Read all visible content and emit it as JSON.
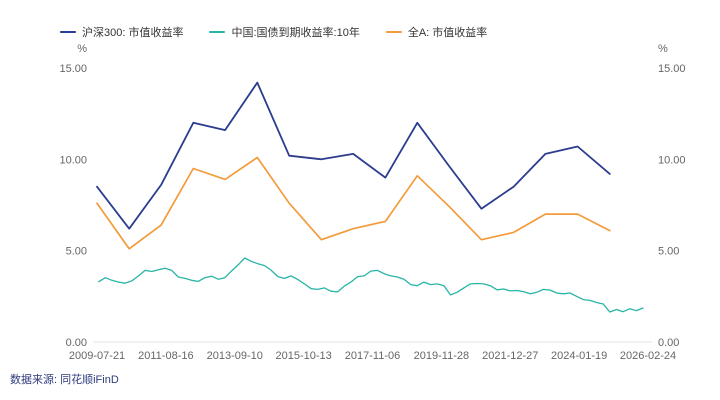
{
  "chart_data": {
    "type": "line",
    "title": "",
    "grid": false,
    "legend_position": "top-left",
    "y_axis": {
      "label": "%",
      "min": 0,
      "max": 15,
      "tick_values": [
        0,
        5,
        10,
        15
      ],
      "tick_labels": [
        "0.00",
        "5.00",
        "10.00",
        "15.00"
      ],
      "shown_on_both_sides": true
    },
    "x_axis": {
      "domain_years": [
        2009.55,
        2026.15
      ],
      "tick_labels": [
        "2009-07-21",
        "2011-08-16",
        "2013-09-10",
        "2015-10-13",
        "2017-11-06",
        "2019-11-28",
        "2021-12-27",
        "2024-01-19",
        "2026-02-24"
      ]
    },
    "series": [
      {
        "id": "hs300-yield",
        "name": "沪深300: 市值收益率",
        "color": "#2c3c8e",
        "x": [
          2009.55,
          2010.52,
          2011.48,
          2012.45,
          2013.41,
          2014.38,
          2015.34,
          2016.31,
          2017.27,
          2018.24,
          2019.2,
          2020.17,
          2021.13,
          2022.1,
          2023.06,
          2024.03,
          2025.0
        ],
        "values": [
          8.5,
          6.2,
          8.6,
          12.0,
          11.6,
          14.2,
          10.2,
          10.0,
          10.3,
          9.0,
          12.0,
          9.6,
          7.3,
          8.5,
          10.3,
          10.7,
          9.2
        ]
      },
      {
        "id": "cn10y-bond-yield",
        "name": "中国:国债到期收益率:10年",
        "color": "#27b5a6",
        "x_start": 2009.6,
        "x_step": 0.2,
        "values": [
          3.3,
          3.52,
          3.38,
          3.28,
          3.22,
          3.35,
          3.62,
          3.92,
          3.86,
          3.95,
          4.04,
          3.92,
          3.56,
          3.48,
          3.38,
          3.32,
          3.52,
          3.6,
          3.44,
          3.52,
          3.88,
          4.22,
          4.6,
          4.42,
          4.28,
          4.18,
          3.92,
          3.58,
          3.48,
          3.62,
          3.42,
          3.18,
          2.92,
          2.88,
          2.96,
          2.78,
          2.74,
          3.06,
          3.28,
          3.58,
          3.62,
          3.88,
          3.92,
          3.74,
          3.62,
          3.56,
          3.44,
          3.14,
          3.08,
          3.28,
          3.14,
          3.18,
          3.08,
          2.58,
          2.72,
          2.96,
          3.18,
          3.2,
          3.18,
          3.08,
          2.86,
          2.9,
          2.8,
          2.82,
          2.76,
          2.64,
          2.72,
          2.88,
          2.84,
          2.68,
          2.64,
          2.68,
          2.5,
          2.32,
          2.28,
          2.16,
          2.08,
          1.64,
          1.78,
          1.66,
          1.82,
          1.72,
          1.86
        ]
      },
      {
        "id": "all-a-yield",
        "name": "全A: 市值收益率",
        "color": "#f39b3a",
        "x": [
          2009.55,
          2010.52,
          2011.48,
          2012.45,
          2013.41,
          2014.38,
          2015.34,
          2016.31,
          2017.27,
          2018.24,
          2019.2,
          2020.17,
          2021.13,
          2022.1,
          2023.06,
          2024.03,
          2025.0
        ],
        "values": [
          7.6,
          5.1,
          6.4,
          9.5,
          8.9,
          10.1,
          7.6,
          5.6,
          6.2,
          6.6,
          9.1,
          7.4,
          5.6,
          6.0,
          7.0,
          7.0,
          6.1
        ]
      }
    ]
  },
  "footer": {
    "source": "数据来源: 同花顺iFinD"
  }
}
